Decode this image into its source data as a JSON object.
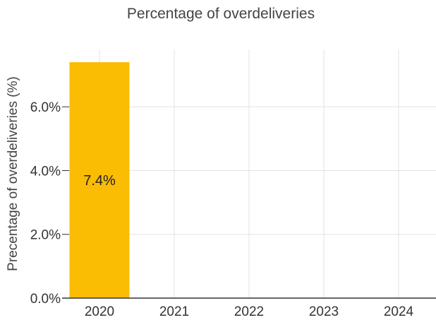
{
  "chart_data": {
    "type": "bar",
    "title": "Percentage of overdeliveries",
    "ylabel": "Precentage of overdeliveries (%)",
    "xlabel": "",
    "categories": [
      "2020",
      "2021",
      "2022",
      "2023",
      "2024"
    ],
    "values": [
      7.4,
      null,
      null,
      null,
      null
    ],
    "data_labels": [
      "7.4%",
      "",
      "",
      "",
      ""
    ],
    "ylim": [
      0,
      7.8
    ],
    "yticks": [
      0,
      2,
      4,
      6
    ],
    "ytick_labels": [
      "0.0%",
      "2.0%",
      "4.0%",
      "6.0%"
    ],
    "grid": true,
    "bar_color": "#FBBC04"
  }
}
